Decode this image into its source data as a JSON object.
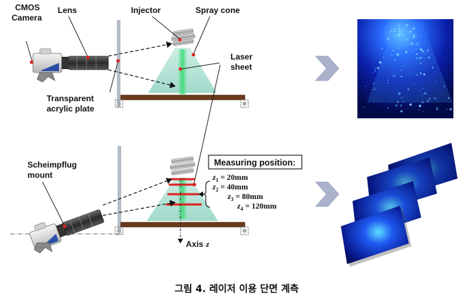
{
  "labels": {
    "cmos_camera_line1": "CMOS",
    "cmos_camera_line2": "Camera",
    "lens": "Lens",
    "injector": "Injector",
    "spray_cone": "Spray cone",
    "laser_sheet_line1": "Laser",
    "laser_sheet_line2": "sheet",
    "acrylic_line1": "Transparent",
    "acrylic_line2": "acrylic plate",
    "scheimpflug_line1": "Scheimpflug",
    "scheimpflug_line2": "mount",
    "measuring_position": "Measuring position:",
    "axis_z": "Axis",
    "axis_z_var": "z"
  },
  "positions": [
    {
      "var": "z",
      "sub": "1",
      "value": " = 20mm"
    },
    {
      "var": "z",
      "sub": "2",
      "value": " = 40mm"
    },
    {
      "var": "z",
      "sub": "3",
      "value": " = 80mm"
    },
    {
      "var": "z",
      "sub": "4",
      "value": " = 120mm"
    }
  ],
  "caption": "그림 4. 레이저 이용 단면 계측",
  "colors": {
    "spray": "#a8ddd0",
    "laser_green": "#3fdc7a",
    "red": "#e02020",
    "wood": "#6b3a1c",
    "arrow_fill": "#aab2cc",
    "image_bg": "#020a4a",
    "image_glow": "#3cb4ff"
  },
  "icons": [
    "cmos-camera-icon",
    "injector-icon",
    "chevron-right-icon",
    "spray-image",
    "layered-slices-image"
  ]
}
